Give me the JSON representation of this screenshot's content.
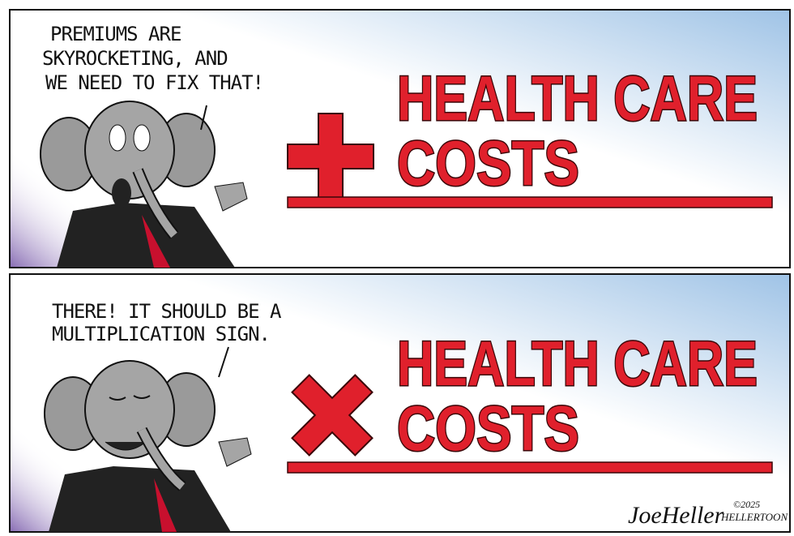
{
  "panels": [
    {
      "speech": [
        "PREMIUMS ARE",
        "SKYROCKETING, AND",
        "WE NEED TO FIX THAT!"
      ],
      "sign": [
        "HEALTH CARE",
        "COSTS"
      ]
    },
    {
      "speech": [
        "THERE! IT SHOULD BE A",
        "MULTIPLICATION SIGN."
      ],
      "sign": [
        "HEALTH CARE",
        "COSTS"
      ]
    }
  ],
  "signature": {
    "name": "JoeHeller",
    "copyright": "©2025",
    "site": "HELLERTOON"
  }
}
